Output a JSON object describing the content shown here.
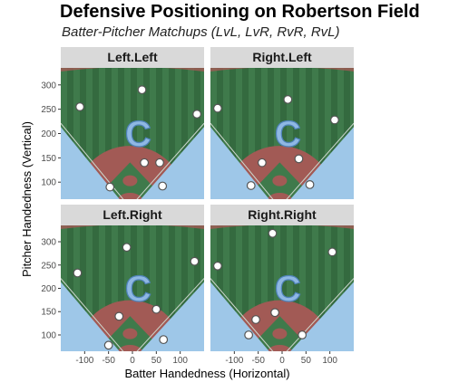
{
  "chart_data": {
    "type": "scatter",
    "title": "Defensive Positioning on Robertson Field",
    "subtitle": "Batter-Pitcher Matchups (LvL, LvR, RvR, RvL)",
    "xlabel": "Batter Handedness (Horizontal)",
    "ylabel": "Pitcher Handedness (Vertical)",
    "xlim": [
      -150,
      150
    ],
    "ylim": [
      65,
      335
    ],
    "x_ticks": [
      -100,
      -50,
      0,
      50,
      100
    ],
    "x_tick_labels": [
      "-100",
      "-50",
      "0",
      "50",
      "100"
    ],
    "y_ticks": [
      100,
      150,
      200,
      250,
      300
    ],
    "y_tick_labels": [
      "100",
      "150",
      "200",
      "250",
      "300"
    ],
    "field_logo": "C",
    "facets": [
      {
        "label": "Left.Left",
        "x": [
          -110,
          20,
          135,
          25,
          57,
          63,
          -47
        ],
        "y": [
          255,
          290,
          240,
          140,
          140,
          92,
          90
        ]
      },
      {
        "label": "Right.Left",
        "x": [
          -135,
          12,
          110,
          -42,
          35,
          58,
          -65
        ],
        "y": [
          252,
          270,
          228,
          140,
          148,
          95,
          93
        ]
      },
      {
        "label": "Left.Right",
        "x": [
          -115,
          -12,
          130,
          50,
          -28,
          65,
          -50
        ],
        "y": [
          233,
          288,
          258,
          155,
          140,
          90,
          78
        ]
      },
      {
        "label": "Right.Right",
        "x": [
          -135,
          -20,
          105,
          -15,
          -55,
          42,
          -70
        ],
        "y": [
          248,
          318,
          278,
          148,
          133,
          100,
          100
        ]
      }
    ],
    "colors": {
      "panel_bg": "#4a7f53",
      "stripe_light": "#3f7a4b",
      "stripe_dark": "#346a3f",
      "dirt": "#a25a55",
      "foul_territory": "#9ec7e8",
      "strip_bg": "#d9d9d9",
      "point_fill": "#ffffff",
      "point_stroke": "#555555"
    }
  }
}
